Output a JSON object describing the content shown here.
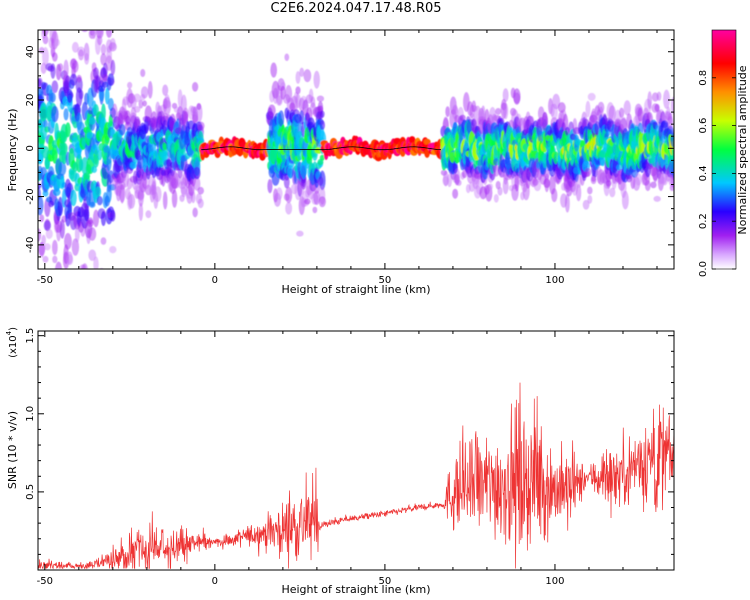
{
  "figure": {
    "title": "C2E6.2024.047.17.48.R05"
  },
  "chart_data": [
    {
      "type": "heatmap",
      "title": "C2E6.2024.047.17.48.R05",
      "xlabel": "Height of straight line (km)",
      "ylabel": "Frequency (Hz)",
      "xlim": [
        -52,
        135
      ],
      "ylim": [
        -50,
        49
      ],
      "xticks": [
        -50,
        0,
        50,
        100
      ],
      "yticks": [
        -40,
        -20,
        0,
        20,
        40
      ],
      "colorbar": {
        "label": "Normalized spectral amplitude",
        "range": [
          0,
          1
        ],
        "ticks": [
          "0.0",
          "0.2",
          "0.4",
          "0.6",
          "0.8"
        ],
        "colormap": "rainbow",
        "colors": [
          "#ffffff",
          "#a020f0",
          "#0000ff",
          "#00e5ff",
          "#00ff00",
          "#ffff00",
          "#ff8000",
          "#ff0000",
          "#ff00a0"
        ]
      },
      "line_color": "#000000",
      "description_segments": [
        {
          "x": [
            -52,
            -30
          ],
          "amplitude": 0.5,
          "spread": 48
        },
        {
          "x": [
            -30,
            -4
          ],
          "amplitude": 0.45,
          "spread": 18
        },
        {
          "x": [
            -4,
            16
          ],
          "amplitude": 1.0,
          "spread": 4
        },
        {
          "x": [
            16,
            32
          ],
          "amplitude": 0.55,
          "spread": 22
        },
        {
          "x": [
            32,
            67
          ],
          "amplitude": 1.0,
          "spread": 3
        },
        {
          "x": [
            67,
            135
          ],
          "amplitude": 0.6,
          "spread": 14
        }
      ]
    },
    {
      "type": "line",
      "xlabel": "Height of straight line (km)",
      "ylabel": "SNR (10 * v/v)",
      "y_multiplier": "(x10",
      "y_multiplier_exp": "4",
      "y_multiplier_close": ")",
      "xlim": [
        -52,
        135
      ],
      "ylim": [
        0,
        1.53
      ],
      "xticks": [
        -50,
        0,
        50,
        100
      ],
      "yticks": [
        0.5,
        1.0,
        1.5
      ],
      "ytick_labels": [
        "0.5",
        "1.0",
        "1.5"
      ],
      "color": "#ee3333",
      "series": [
        {
          "x": [
            -52,
            -40,
            -30,
            -25,
            -20,
            -15,
            -10,
            -5,
            0,
            5,
            10,
            15,
            20,
            25,
            30,
            31,
            32,
            40,
            50,
            60,
            67,
            70,
            80,
            85,
            90,
            95,
            100,
            104,
            110,
            112,
            118,
            122,
            126,
            130,
            135
          ],
          "y": [
            0.03,
            0.02,
            0.06,
            0.1,
            0.12,
            0.14,
            0.16,
            0.17,
            0.18,
            0.19,
            0.22,
            0.24,
            0.26,
            0.3,
            0.3,
            0.28,
            0.29,
            0.33,
            0.36,
            0.4,
            0.42,
            0.5,
            0.55,
            0.55,
            0.6,
            0.55,
            0.52,
            0.5,
            0.6,
            0.6,
            0.6,
            0.65,
            0.7,
            0.7,
            0.72
          ],
          "noise": [
            0.04,
            0.02,
            0.06,
            0.12,
            0.12,
            0.12,
            0.12,
            0.06,
            0.04,
            0.05,
            0.06,
            0.1,
            0.16,
            0.22,
            0.22,
            0.02,
            0.02,
            0.02,
            0.02,
            0.02,
            0.02,
            0.25,
            0.3,
            0.35,
            0.45,
            0.35,
            0.25,
            0.25,
            0.04,
            0.15,
            0.2,
            0.2,
            0.25,
            0.35,
            0.3
          ]
        }
      ]
    }
  ]
}
